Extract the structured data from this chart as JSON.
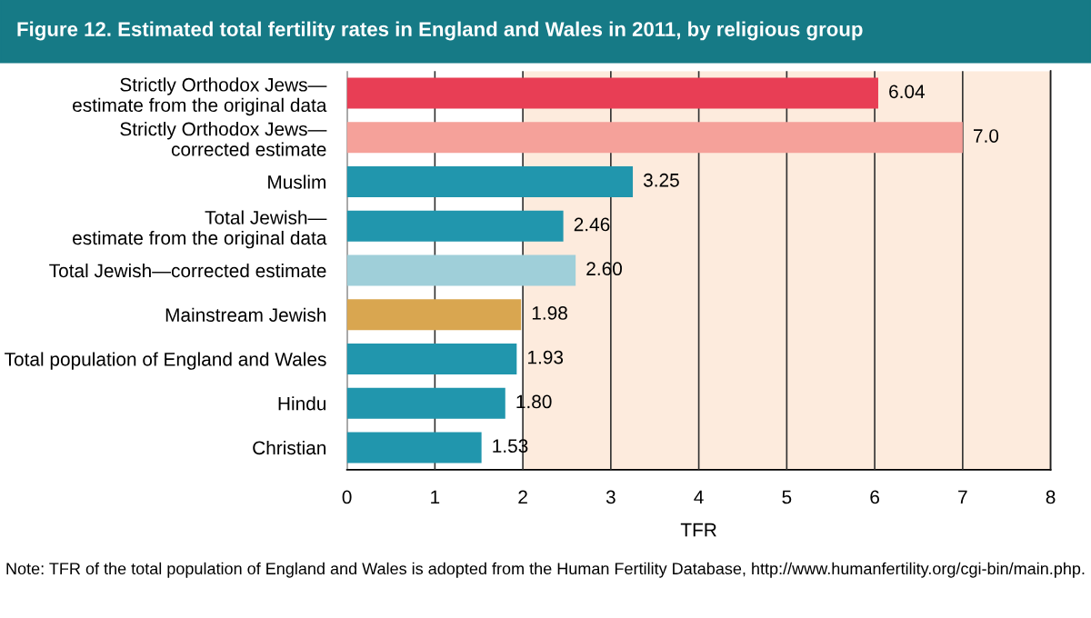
{
  "chart_data": {
    "type": "bar",
    "orientation": "horizontal",
    "title": "Figure 12. Estimated total fertility rates in England and Wales in 2011, by religious group",
    "categories": [
      "Strictly Orthodox Jews—\nestimate from the original data",
      "Strictly Orthodox Jews—\ncorrected estimate",
      "Muslim",
      "Total Jewish—\nestimate from the original data",
      "Total Jewish—corrected estimate",
      "Mainstream Jewish",
      "Total population of England and Wales",
      "Hindu",
      "Christian"
    ],
    "values": [
      6.04,
      7.0,
      3.25,
      2.46,
      2.6,
      1.98,
      1.93,
      1.8,
      1.53
    ],
    "colors": [
      "#e83e55",
      "#f5a19a",
      "#2196ad",
      "#2196ad",
      "#9fcfd9",
      "#d9a650",
      "#2196ad",
      "#2196ad",
      "#2196ad"
    ],
    "value_labels": [
      "6.04",
      "7.0",
      "3.25",
      "2.46",
      "2.60",
      "1.98",
      "1.93",
      "1.80",
      "1.53"
    ],
    "xlabel": "TFR",
    "xlim": [
      0,
      8
    ],
    "xticks": [
      0,
      1,
      2,
      3,
      4,
      5,
      6,
      7,
      8
    ],
    "grid": "x",
    "bands": [
      {
        "axis": "x",
        "from": 2,
        "to": 8,
        "color": "#fdebdd"
      }
    ],
    "annotations": [
      "Note: TFR of the total population of England and Wales is adopted from the Human Fertility Database, http://www.humanfertility.org/cgi-bin/main.php."
    ]
  }
}
